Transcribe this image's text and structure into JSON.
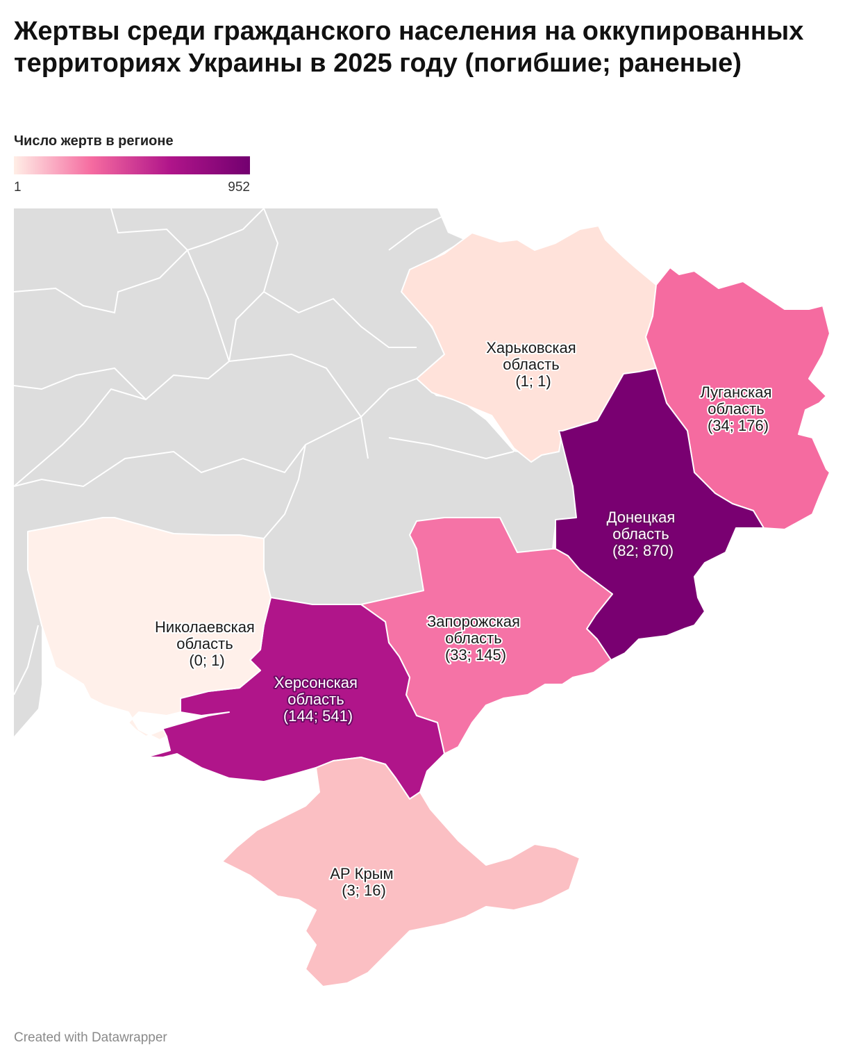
{
  "title": "Жертвы среди гражданского населения на оккупированных территориях Украины в 2025 году (погибшие; раненые)",
  "legend": {
    "title": "Число жертв в регионе",
    "min_label": "1",
    "max_label": "952",
    "colors": [
      "#ffeee6",
      "#f56ba0",
      "#b0158a",
      "#730070"
    ]
  },
  "colors": {
    "background_region": "#dddddd",
    "border": "#ffffff"
  },
  "regions": {
    "kharkiv": {
      "name1": "Харьковская",
      "name2": "область",
      "values": "(1; 1)",
      "color": "#ffe2da"
    },
    "luhansk": {
      "name1": "Луганская",
      "name2": "область",
      "values": "(34; 176)",
      "color": "#f56ba0"
    },
    "donetsk": {
      "name1": "Донецкая",
      "name2": "область",
      "values": "(82; 870)",
      "color": "#790071"
    },
    "zaporizhzhia": {
      "name1": "Запорожская",
      "name2": "область",
      "values": "(33; 145)",
      "color": "#f573a6"
    },
    "kherson": {
      "name1": "Херсонская",
      "name2": "область",
      "values": "(144; 541)",
      "color": "#b0158a"
    },
    "mykolaiv": {
      "name1": "Николаевская",
      "name2": "область",
      "values": "(0; 1)",
      "color": "#fff0ea"
    },
    "crimea": {
      "name1": "АР Крым",
      "values": "(3; 16)",
      "color": "#fbbfc3"
    }
  },
  "footer": "Created with Datawrapper"
}
